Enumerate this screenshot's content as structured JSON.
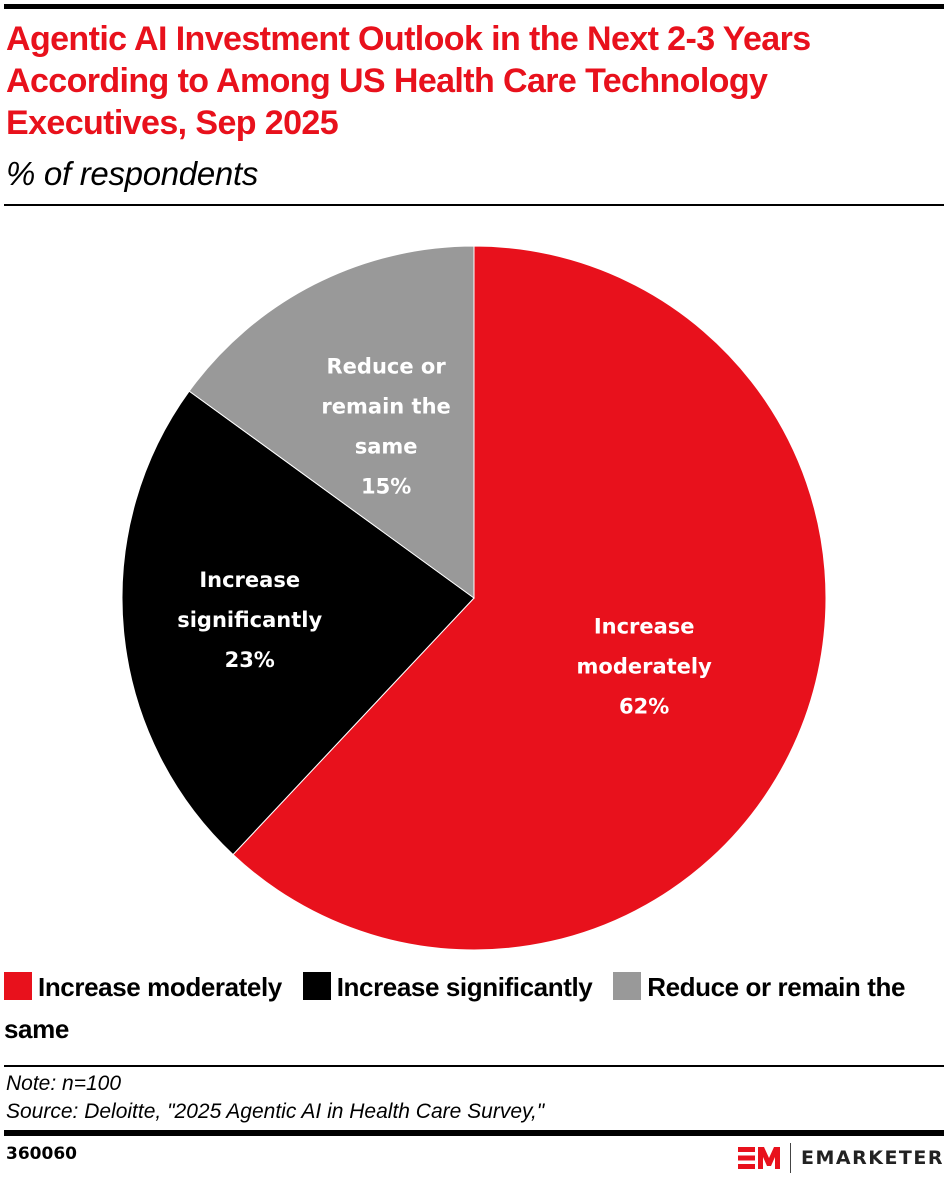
{
  "header": {
    "title": "Agentic AI Investment Outlook in the Next 2-3 Years According to Among US Health Care Technology Executives, Sep 2025",
    "subtitle": "% of respondents"
  },
  "chart_data": {
    "type": "pie",
    "title": "Agentic AI Investment Outlook in the Next 2-3 Years According to Among US Health Care Technology Executives, Sep 2025",
    "subtitle": "% of respondents",
    "unit": "%",
    "start_angle": "12 o'clock, clockwise",
    "slices": [
      {
        "label": "Increase moderately",
        "value": 62,
        "value_label": "62%",
        "label_lines": [
          "Increase",
          "moderately",
          "62%"
        ],
        "color": "#e8111c"
      },
      {
        "label": "Increase significantly",
        "value": 23,
        "value_label": "23%",
        "label_lines": [
          "Increase",
          "significantly",
          "23%"
        ],
        "color": "#000000"
      },
      {
        "label": "Reduce or remain the same",
        "value": 15,
        "value_label": "15%",
        "label_lines": [
          "Reduce or",
          "remain the",
          "same",
          "15%"
        ],
        "color": "#999999"
      }
    ],
    "legend": [
      "Increase moderately",
      "Increase significantly",
      "Reduce or remain the same"
    ],
    "legend_position": "bottom"
  },
  "legend": {
    "items": [
      {
        "label": "Increase moderately",
        "color": "#e8111c"
      },
      {
        "label": "Increase significantly",
        "color": "#000000"
      },
      {
        "label": "Reduce or remain the same",
        "color": "#999999"
      }
    ]
  },
  "footer": {
    "note": "Note: n=100",
    "source": "Source: Deloitte, \"2025 Agentic AI in Health Care Survey,\"",
    "chart_id": "360060",
    "brand": "EMARKETER",
    "brand_color": "#e8111c"
  }
}
